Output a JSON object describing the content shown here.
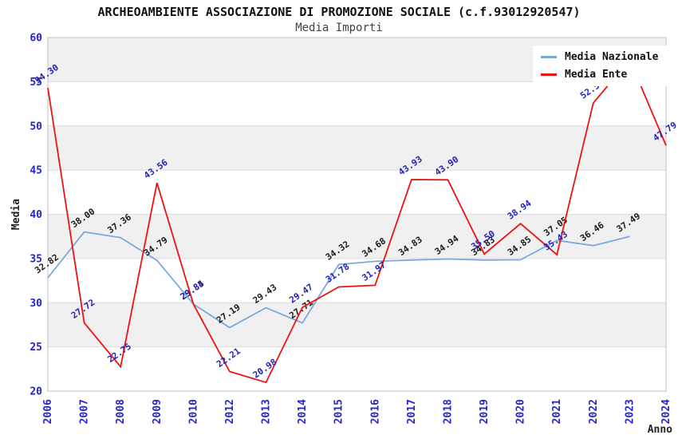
{
  "header": {
    "title": "ARCHEOAMBIENTE ASSOCIAZIONE DI PROMOZIONE SOCIALE (c.f.93012920547)",
    "subtitle": "Media Importi"
  },
  "chart_data": {
    "type": "line",
    "title": "ARCHEOAMBIENTE ASSOCIAZIONE DI PROMOZIONE SOCIALE (c.f.93012920547)",
    "subtitle": "Media Importi",
    "xlabel": "Anno",
    "ylabel": "Media",
    "ylim": [
      20,
      60
    ],
    "y_ticks": [
      20,
      25,
      30,
      35,
      40,
      45,
      50,
      55,
      60
    ],
    "x_categories": [
      "2006",
      "2007",
      "2008",
      "2009",
      "2010",
      "2012",
      "2013",
      "2014",
      "2015",
      "2016",
      "2017",
      "2018",
      "2019",
      "2020",
      "2021",
      "2022",
      "2023",
      "2024"
    ],
    "grid": true,
    "legend_position": "top-right",
    "series": [
      {
        "id": "media-nazionale",
        "name": "Media Nazionale",
        "color": "#7aa9dc",
        "label_color": "#1a1a1a",
        "values": [
          32.82,
          38.0,
          37.36,
          34.79,
          29.84,
          27.19,
          29.43,
          27.71,
          34.32,
          34.68,
          34.83,
          34.94,
          34.83,
          34.85,
          37.05,
          36.46,
          37.49,
          null
        ],
        "labels": [
          "32.82",
          "38.00",
          "37.36",
          "34.79",
          "29.84",
          "27.19",
          "29.43",
          "27.71",
          "34.32",
          "34.68",
          "34.83",
          "34.94",
          "34.83",
          "34.85",
          "37.05",
          "36.46",
          "37.49",
          null
        ]
      },
      {
        "id": "media-ente",
        "name": "Media Ente",
        "color": "#ee1111",
        "label_color": "#2222bb",
        "values": [
          54.3,
          27.72,
          22.75,
          43.56,
          29.85,
          22.21,
          20.98,
          29.47,
          31.78,
          31.97,
          43.93,
          43.9,
          35.5,
          38.94,
          35.43,
          52.59,
          57.5,
          47.79
        ],
        "labels": [
          "54.30",
          "27.72",
          "22.75",
          "43.56",
          "29.85",
          "22.21",
          "20.98",
          "29.47",
          "31.78",
          "31.97",
          "43.93",
          "43.90",
          "35.50",
          "38.94",
          "35.43",
          "52.59",
          null,
          "47.79"
        ]
      }
    ],
    "colors": {
      "band_grey": "#f0f0f0",
      "band_white": "#ffffff",
      "gridline": "#dcdcdc",
      "plot_border": "#c0c0c0",
      "axis_text": "#2424cc",
      "axis_title_text": "#222222",
      "title_text": "#111111",
      "subtitle_text": "#444444"
    }
  }
}
